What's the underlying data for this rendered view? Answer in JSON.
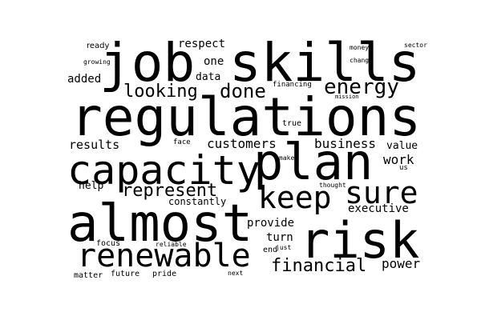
{
  "words": {
    "regulations": "regulations",
    "job": "job",
    "skills": "skills",
    "almost": "almost",
    "plan": "plan",
    "risk": "risk",
    "capacity": "capacity",
    "renewable": "renewable",
    "keep": "keep",
    "sure": "sure",
    "represent": "represent",
    "looking": "looking",
    "done": "done",
    "energy": "energy",
    "financial": "financial",
    "customers": "customers",
    "business": "business",
    "results": "results",
    "work": "work",
    "value": "value",
    "provide": "provide",
    "turn": "turn",
    "executive": "executive",
    "power": "power",
    "help": "help",
    "constantly": "constantly",
    "added": "added",
    "data": "data",
    "one": "one",
    "respect": "respect",
    "ready": "ready",
    "growing": "growing",
    "money": "money",
    "change": "change",
    "sector": "sector",
    "financing": "financing",
    "mission": "mission",
    "true": "true",
    "face": "face",
    "make": "make",
    "thought": "thought",
    "us": "us",
    "end": "end",
    "just": "just",
    "focus": "focus",
    "reliable": "reliable",
    "matter": "matter",
    "future": "future",
    "pride": "pride",
    "next": "next"
  }
}
